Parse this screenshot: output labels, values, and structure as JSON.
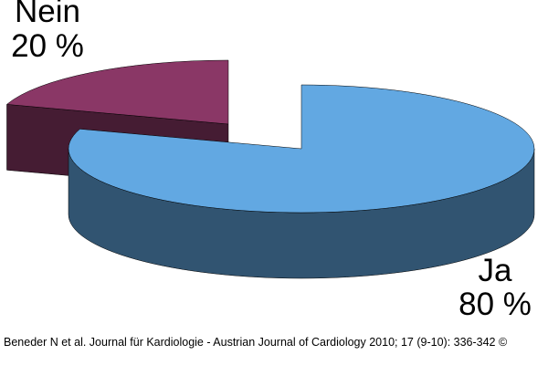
{
  "chart_data": {
    "type": "pie",
    "categories": [
      "Ja",
      "Nein"
    ],
    "values": [
      80,
      20
    ],
    "value_labels": [
      "80 %",
      "20 %"
    ],
    "colors": [
      "#62a8e2",
      "#8a3766"
    ],
    "source": "Beneder N et al. Journal für Kardiologie - Austrian Journal of Cardiology 2010; 17 (9-10): 336-342 ©"
  }
}
